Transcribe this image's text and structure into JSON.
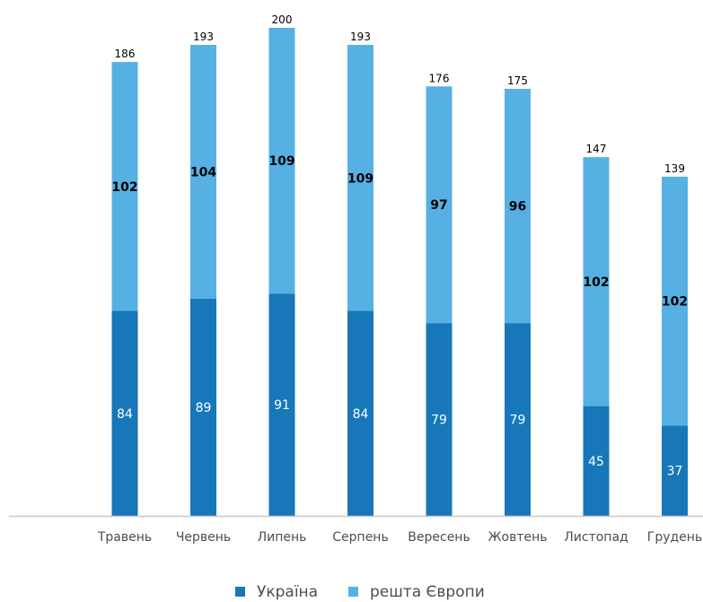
{
  "chart_data": {
    "type": "bar",
    "stacked": true,
    "categories": [
      "Травень",
      "Червень",
      "Липень",
      "Серпень",
      "Вересень",
      "Жовтень",
      "Листопад",
      "Грудень"
    ],
    "series": [
      {
        "name": "Україна",
        "values": [
          84,
          89,
          91,
          84,
          79,
          79,
          45,
          37
        ],
        "color": "#1777b8"
      },
      {
        "name": "решта Європи",
        "values": [
          102,
          104,
          109,
          109,
          97,
          96,
          102,
          102
        ],
        "color": "#56b0e3"
      }
    ],
    "totals": [
      186,
      193,
      200,
      193,
      176,
      175,
      147,
      139
    ],
    "title": "",
    "xlabel": "",
    "ylabel": "",
    "ylim": [
      0,
      200
    ],
    "grid": false,
    "legend": "bottom-center",
    "axis_color": "#c8c8c8"
  }
}
